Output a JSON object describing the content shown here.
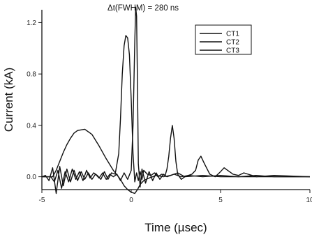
{
  "chart_data": {
    "type": "line",
    "title": "",
    "annotation": "Δt(FWHM) = 280 ns",
    "xlabel": "Time (µsec)",
    "ylabel": "Current (kA)",
    "xlim": [
      -5,
      10
    ],
    "ylim": [
      -0.1,
      1.3
    ],
    "xticks": [
      -5,
      0,
      5,
      10
    ],
    "xtick_labels": [
      "-5",
      "0",
      "5",
      "10"
    ],
    "yticks": [
      0.0,
      0.4,
      0.8,
      1.2
    ],
    "ytick_labels": [
      "0.0",
      "0.4",
      "0.8",
      "1.2"
    ],
    "grid": false,
    "legend_position": "top-right",
    "series": [
      {
        "name": "CT1",
        "x": [
          -5.0,
          -4.4,
          -4.2,
          -4.0,
          -3.8,
          -3.6,
          -3.4,
          -3.2,
          -3.0,
          -2.6,
          -2.2,
          -1.8,
          -1.4,
          -1.0,
          -0.6,
          -0.4,
          -0.2,
          0.0,
          0.2,
          0.35,
          0.5,
          0.7,
          1.0,
          1.4,
          1.8,
          2.2,
          2.6,
          3.0,
          4.0,
          5.0,
          7.0,
          10.0
        ],
        "y": [
          0.0,
          0.0,
          0.05,
          0.12,
          0.19,
          0.25,
          0.3,
          0.34,
          0.36,
          0.37,
          0.33,
          0.24,
          0.14,
          0.05,
          -0.02,
          -0.07,
          -0.1,
          -0.12,
          -0.13,
          -0.1,
          -0.06,
          -0.03,
          -0.01,
          0.01,
          0.0,
          0.01,
          0.03,
          0.0,
          0.01,
          0.0,
          0.0,
          0.0
        ]
      },
      {
        "name": "CT2",
        "x": [
          -5.0,
          -4.5,
          -4.3,
          -4.1,
          -3.9,
          -3.7,
          -3.5,
          -3.3,
          -3.1,
          -2.9,
          -2.7,
          -2.5,
          -2.3,
          -2.1,
          -1.9,
          -1.7,
          -1.5,
          -1.3,
          -1.1,
          -0.9,
          -0.7,
          -0.6,
          -0.5,
          -0.4,
          -0.3,
          -0.2,
          -0.1,
          0.0,
          0.1,
          0.2,
          0.3,
          0.4,
          0.5,
          0.6,
          0.7,
          0.9,
          1.1,
          1.3,
          1.5,
          1.7,
          1.9,
          2.0,
          2.1,
          2.2,
          2.3,
          2.4,
          2.5,
          2.6,
          2.8,
          3.0,
          3.2,
          3.4,
          3.6,
          3.75,
          3.9,
          4.1,
          4.4,
          4.7,
          5.0,
          5.2,
          5.4,
          5.7,
          6.0,
          6.3,
          7.0,
          8.0,
          10.0
        ],
        "y": [
          0.0,
          0.0,
          -0.04,
          0.05,
          -0.09,
          0.04,
          -0.04,
          0.06,
          -0.02,
          0.04,
          -0.03,
          0.05,
          -0.01,
          0.03,
          0.01,
          -0.02,
          0.04,
          -0.02,
          0.03,
          0.02,
          0.18,
          0.45,
          0.8,
          1.02,
          1.1,
          1.08,
          0.95,
          0.6,
          0.18,
          -0.04,
          0.03,
          -0.03,
          0.04,
          -0.02,
          0.05,
          0.02,
          0.01,
          0.03,
          0.0,
          0.02,
          0.01,
          0.06,
          0.16,
          0.3,
          0.4,
          0.3,
          0.12,
          0.02,
          -0.02,
          0.0,
          0.01,
          0.02,
          0.05,
          0.13,
          0.16,
          0.1,
          0.02,
          0.0,
          0.04,
          0.07,
          0.05,
          0.02,
          0.01,
          0.03,
          0.0,
          0.01,
          0.0
        ]
      },
      {
        "name": "CT3",
        "x": [
          -5.0,
          -4.8,
          -4.6,
          -4.4,
          -4.2,
          -4.0,
          -3.8,
          -3.6,
          -3.4,
          -3.2,
          -3.0,
          -2.8,
          -2.6,
          -2.4,
          -2.2,
          -2.0,
          -1.8,
          -1.6,
          -1.4,
          -1.2,
          -1.0,
          -0.8,
          -0.6,
          -0.4,
          -0.2,
          0.0,
          0.1,
          0.2,
          0.25,
          0.3,
          0.35,
          0.4,
          0.5,
          0.6,
          0.8,
          1.0,
          1.2,
          1.4,
          1.6,
          1.8,
          2.0,
          2.4,
          2.8,
          3.2,
          4.0,
          5.0,
          6.0,
          7.0,
          8.0,
          10.0
        ],
        "y": [
          0.0,
          0.01,
          -0.03,
          0.07,
          -0.13,
          0.08,
          -0.07,
          0.06,
          -0.04,
          0.05,
          -0.03,
          0.04,
          -0.02,
          0.03,
          -0.02,
          0.02,
          -0.01,
          0.03,
          -0.02,
          0.02,
          0.0,
          0.02,
          -0.03,
          0.03,
          -0.02,
          0.05,
          0.4,
          1.05,
          1.32,
          1.25,
          0.7,
          0.1,
          -0.08,
          0.06,
          -0.05,
          0.04,
          -0.03,
          0.03,
          -0.02,
          0.02,
          0.0,
          0.02,
          0.0,
          0.01,
          0.0,
          0.01,
          0.0,
          0.01,
          0.0,
          0.0
        ]
      }
    ]
  }
}
